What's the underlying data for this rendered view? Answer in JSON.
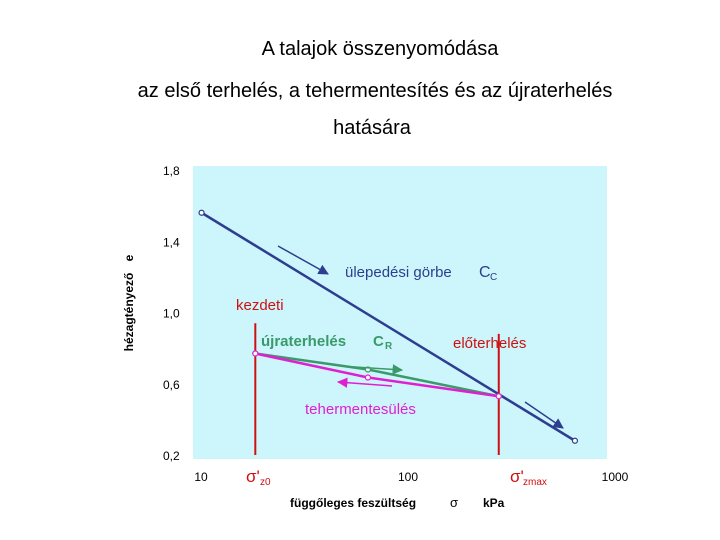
{
  "chart_data": {
    "type": "line",
    "title": "A talajok összenyomódása",
    "subtitle": [
      "az első terhelés, a tehermentesítés és az újraterhelés",
      "hatására"
    ],
    "xlabel": [
      "függőleges feszültség",
      "σ",
      "kPa"
    ],
    "ylabel": [
      "hézagtényező",
      "e"
    ],
    "xscale": "log",
    "xlim": [
      10,
      1000
    ],
    "xticks": [
      10,
      100,
      1000
    ],
    "ylim": [
      0.2,
      1.8
    ],
    "yticks": [
      {
        "value": 1.8,
        "label": "1,8"
      },
      {
        "value": 1.4,
        "label": "1,4"
      },
      {
        "value": 1.0,
        "label": "1,0"
      },
      {
        "value": 0.6,
        "label": "0,6"
      },
      {
        "value": 0.2,
        "label": "0,2"
      }
    ],
    "background": "#ccf6fb",
    "series": [
      {
        "color": "#2e3d8f",
        "x": [
          11,
          700
        ],
        "values": [
          1.56,
          0.28
        ]
      },
      {
        "color": "#3a9a6a",
        "x": [
          20,
          70,
          300
        ],
        "values": [
          0.77,
          0.68,
          0.53
        ]
      },
      {
        "color": "#e020d0",
        "x": [
          20,
          70,
          300
        ],
        "values": [
          0.77,
          0.635,
          0.53
        ]
      }
    ],
    "vlines": [
      {
        "color": "#d01010",
        "x": 20,
        "top": 0.94
      },
      {
        "color": "#d01010",
        "x": 300,
        "top": 0.88
      }
    ],
    "annotations": {
      "compression": [
        "ülepedési görbe",
        "C",
        "C"
      ],
      "initial": "kezdeti",
      "reloading": [
        "újraterhelés",
        "C",
        "R"
      ],
      "preload": "előterhelés",
      "unloading": "tehermentesülés",
      "sigma_z0": [
        "σ'",
        "z0"
      ],
      "sigma_zmax": [
        "σ'",
        "zmax"
      ]
    }
  }
}
